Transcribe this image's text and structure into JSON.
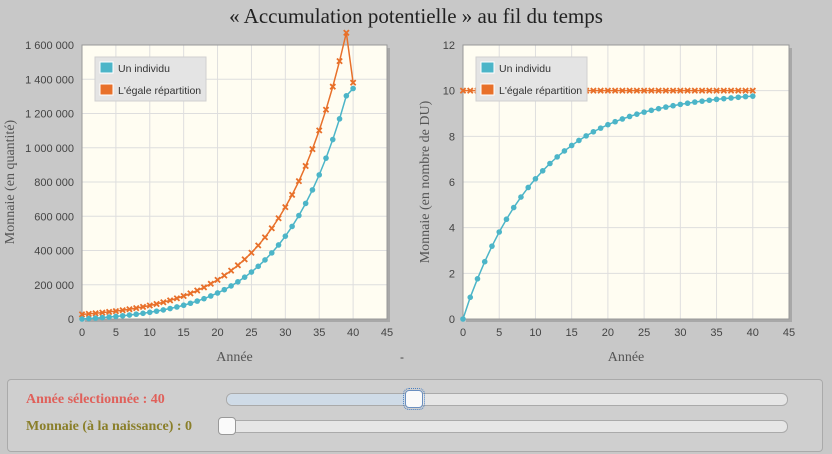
{
  "title": "« Accumulation potentielle » au fil du temps",
  "separator": "-",
  "colors": {
    "individual": "#4cb5c8",
    "equal": "#e8702a",
    "plot_bg": "#fffdf2",
    "frame": "#999999"
  },
  "chart_data": [
    {
      "type": "line",
      "xlabel": "Année",
      "ylabel": "Monnaie (en quantité)",
      "xlim": [
        0,
        45
      ],
      "ylim": [
        0,
        1600000
      ],
      "xticks": [
        0,
        5,
        10,
        15,
        20,
        25,
        30,
        35,
        40,
        45
      ],
      "yticks": [
        0,
        200000,
        400000,
        600000,
        800000,
        1000000,
        1200000,
        1400000,
        1600000
      ],
      "ytick_labels": [
        "0",
        "200 000",
        "400 000",
        "600 000",
        "800 000",
        "1 000 000",
        "1 200 000",
        "1 400 000",
        "1 600 000"
      ],
      "xtick_labels": [
        "0",
        "5",
        "10",
        "15",
        "20",
        "25",
        "30",
        "35",
        "40",
        "45"
      ],
      "legend_position": "top-left",
      "grid": true,
      "series": [
        {
          "name": "Un individu",
          "marker": "circle",
          "values": [
            0,
            2600,
            5300,
            8200,
            11400,
            14900,
            18800,
            23100,
            27900,
            33200,
            39100,
            45700,
            53000,
            61200,
            70300,
            80500,
            91900,
            104600,
            118700,
            134400,
            151900,
            171400,
            193100,
            217300,
            244200,
            274200,
            307600,
            344800,
            386200,
            432300,
            483600,
            540700,
            604300,
            675100,
            753900,
            841600,
            939300,
            1047900,
            1168800,
            1303300,
            1346000
          ]
        },
        {
          "name": "L'égale répartition",
          "marker": "x",
          "values": [
            27000,
            30000,
            33400,
            37200,
            41400,
            46100,
            51300,
            57100,
            63600,
            70800,
            78800,
            87700,
            97600,
            108600,
            120800,
            134400,
            149500,
            166300,
            184900,
            205600,
            228600,
            254100,
            282400,
            313700,
            348400,
            386900,
            429600,
            477000,
            529700,
            588200,
            653100,
            725000,
            804900,
            893500,
            991900,
            1101100,
            1222300,
            1356700,
            1505900,
            1671500,
            1380000
          ]
        }
      ]
    },
    {
      "type": "line",
      "xlabel": "Année",
      "ylabel": "Monnaie (en nombre de DU)",
      "xlim": [
        0,
        45
      ],
      "ylim": [
        0,
        12
      ],
      "xticks": [
        0,
        5,
        10,
        15,
        20,
        25,
        30,
        35,
        40,
        45
      ],
      "yticks": [
        0,
        2,
        4,
        6,
        8,
        10,
        12
      ],
      "ytick_labels": [
        "0",
        "2",
        "4",
        "6",
        "8",
        "10",
        "12"
      ],
      "xtick_labels": [
        "0",
        "5",
        "10",
        "15",
        "20",
        "25",
        "30",
        "35",
        "40",
        "45"
      ],
      "legend_position": "top-left",
      "grid": true,
      "series": [
        {
          "name": "Un individu",
          "marker": "circle",
          "values": [
            0,
            0.95,
            1.76,
            2.51,
            3.19,
            3.81,
            4.37,
            4.88,
            5.34,
            5.76,
            6.14,
            6.49,
            6.81,
            7.1,
            7.36,
            7.6,
            7.82,
            8.02,
            8.2,
            8.36,
            8.51,
            8.64,
            8.76,
            8.87,
            8.97,
            9.06,
            9.14,
            9.21,
            9.28,
            9.34,
            9.4,
            9.45,
            9.5,
            9.54,
            9.58,
            9.62,
            9.65,
            9.68,
            9.71,
            9.74,
            9.76
          ]
        },
        {
          "name": "L'égale répartition",
          "marker": "x",
          "values": [
            10,
            10,
            10,
            10,
            10,
            10,
            10,
            10,
            10,
            10,
            10,
            10,
            10,
            10,
            10,
            10,
            10,
            10,
            10,
            10,
            10,
            10,
            10,
            10,
            10,
            10,
            10,
            10,
            10,
            10,
            10,
            10,
            10,
            10,
            10,
            10,
            10,
            10,
            10,
            10,
            10
          ]
        }
      ]
    }
  ],
  "controls": {
    "year": {
      "label": "Année sélectionnée : 40",
      "value": 40,
      "min": 0,
      "max": 120
    },
    "money": {
      "label": "Monnaie (à la naissance) : 0",
      "value": 0,
      "min": 0,
      "max": 100
    }
  }
}
